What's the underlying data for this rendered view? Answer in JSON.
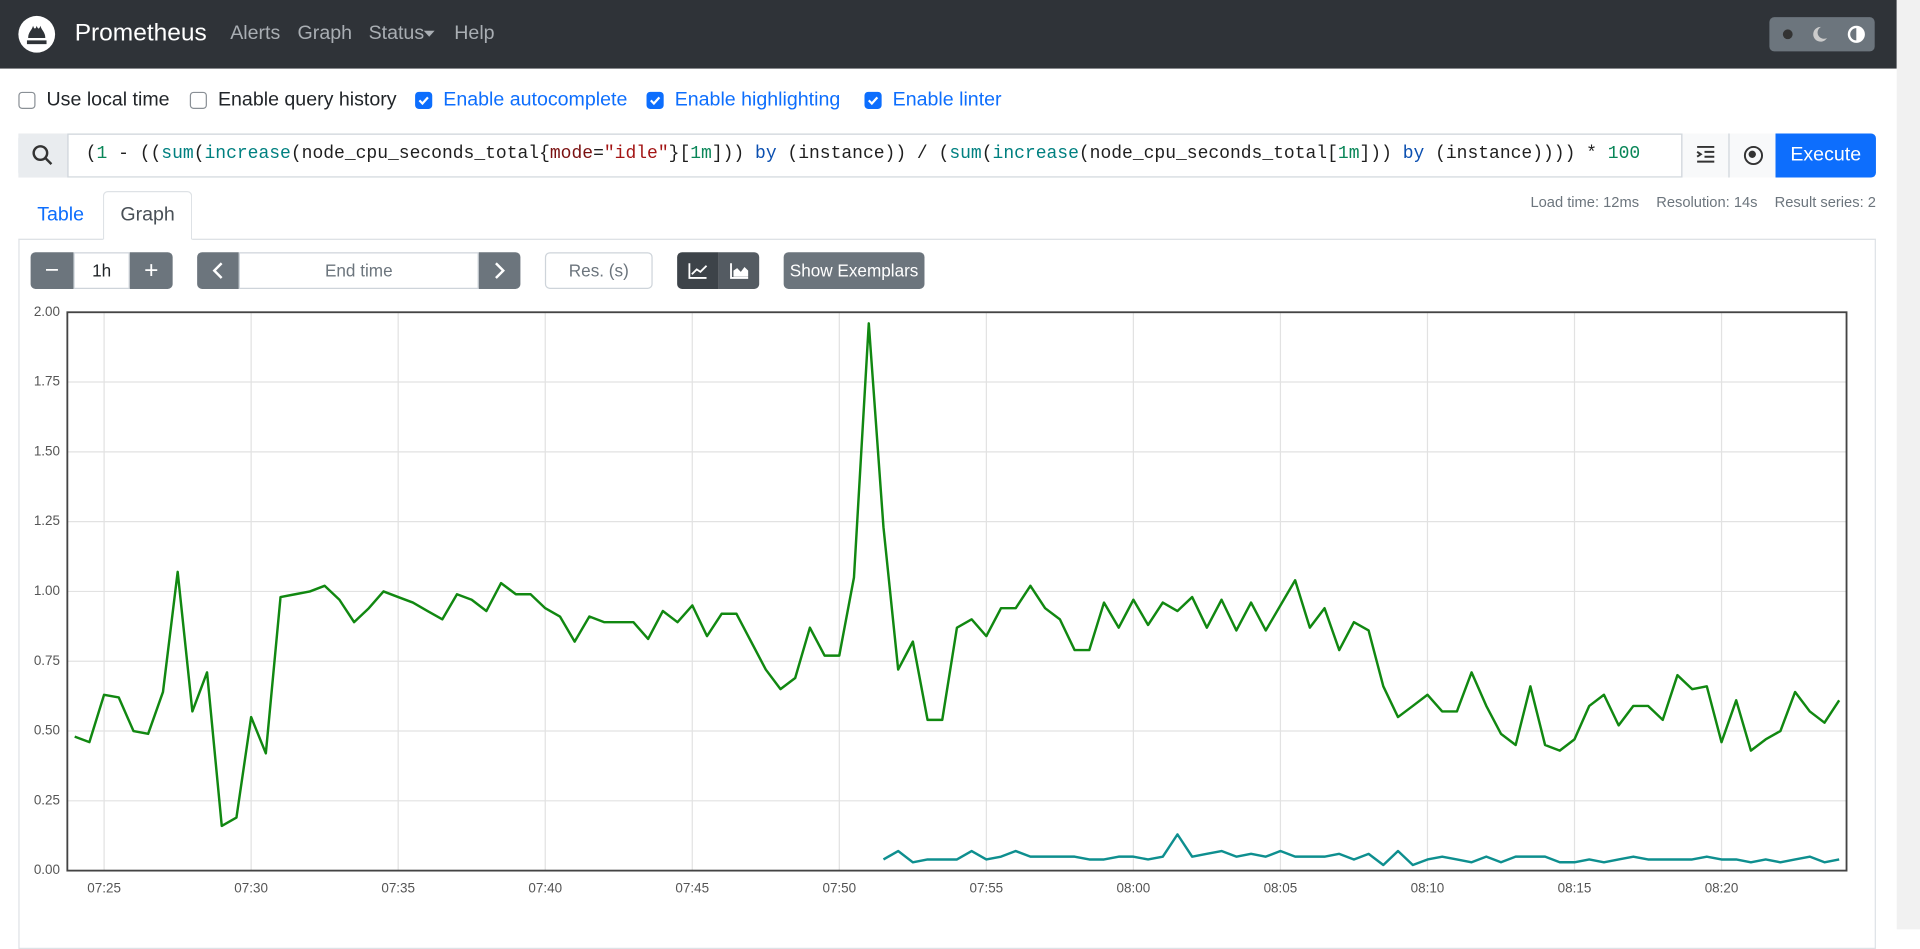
{
  "navbar": {
    "brand": "Prometheus",
    "links": [
      "Alerts",
      "Graph",
      "Status",
      "Help"
    ]
  },
  "options": [
    "Use local time",
    "Enable query history",
    "Enable autocomplete",
    "Enable highlighting",
    "Enable linter"
  ],
  "options_checked": [
    false,
    false,
    true,
    true,
    true
  ],
  "query": {
    "expression": "(1 - ((sum(increase(node_cpu_seconds_total{mode=\"idle\"}[1m])) by (instance)) / (sum(increase(node_cpu_seconds_total[1m])) by (instance)))) * 100",
    "execute": "Execute"
  },
  "stats": [
    "Load time: 12ms",
    "Resolution: 14s",
    "Result series: 2"
  ],
  "tabs": [
    "Table",
    "Graph"
  ],
  "active_tab": 1,
  "controls": {
    "range": "1h",
    "end_time": "End time",
    "resolution": "Res. (s)",
    "exemplars": "Show Exemplars"
  },
  "chart_data": {
    "type": "line",
    "x": [
      "07:24:00",
      "07:24:30",
      "07:25:00",
      "07:25:30",
      "07:26:00",
      "07:26:30",
      "07:27:00",
      "07:27:30",
      "07:28:00",
      "07:28:30",
      "07:29:00",
      "07:29:30",
      "07:30:00",
      "07:30:30",
      "07:31:00",
      "07:31:30",
      "07:32:00",
      "07:32:30",
      "07:33:00",
      "07:33:30",
      "07:34:00",
      "07:34:30",
      "07:35:00",
      "07:35:30",
      "07:36:00",
      "07:36:30",
      "07:37:00",
      "07:37:30",
      "07:38:00",
      "07:38:30",
      "07:39:00",
      "07:39:30",
      "07:40:00",
      "07:40:30",
      "07:41:00",
      "07:41:30",
      "07:42:00",
      "07:42:30",
      "07:43:00",
      "07:43:30",
      "07:44:00",
      "07:44:30",
      "07:45:00",
      "07:45:30",
      "07:46:00",
      "07:46:30",
      "07:47:00",
      "07:47:30",
      "07:48:00",
      "07:48:30",
      "07:49:00",
      "07:49:30",
      "07:50:00",
      "07:50:30",
      "07:51:00",
      "07:51:30",
      "07:52:00",
      "07:52:30",
      "07:53:00",
      "07:53:30",
      "07:54:00",
      "07:54:30",
      "07:55:00",
      "07:55:30",
      "07:56:00",
      "07:56:30",
      "07:57:00",
      "07:57:30",
      "07:58:00",
      "07:58:30",
      "07:59:00",
      "07:59:30",
      "08:00:00",
      "08:00:30",
      "08:01:00",
      "08:01:30",
      "08:02:00",
      "08:02:30",
      "08:03:00",
      "08:03:30",
      "08:04:00",
      "08:04:30",
      "08:05:00",
      "08:05:30",
      "08:06:00",
      "08:06:30",
      "08:07:00",
      "08:07:30",
      "08:08:00",
      "08:08:30",
      "08:09:00",
      "08:09:30",
      "08:10:00",
      "08:10:30",
      "08:11:00",
      "08:11:30",
      "08:12:00",
      "08:12:30",
      "08:13:00",
      "08:13:30",
      "08:14:00",
      "08:14:30",
      "08:15:00",
      "08:15:30",
      "08:16:00",
      "08:16:30",
      "08:17:00",
      "08:17:30",
      "08:18:00",
      "08:18:30",
      "08:19:00",
      "08:19:30",
      "08:20:00",
      "08:20:30",
      "08:21:00",
      "08:21:30",
      "08:22:00",
      "08:22:30",
      "08:23:00",
      "08:23:30",
      "08:24:00"
    ],
    "series": [
      {
        "color": "#118811",
        "values": [
          0.48,
          0.46,
          0.63,
          0.62,
          0.5,
          0.49,
          0.64,
          1.07,
          0.57,
          0.71,
          0.16,
          0.19,
          0.55,
          0.42,
          0.98,
          0.99,
          1.0,
          1.02,
          0.97,
          0.89,
          0.94,
          1.0,
          0.98,
          0.96,
          0.93,
          0.9,
          0.99,
          0.97,
          0.93,
          1.03,
          0.99,
          0.99,
          0.94,
          0.91,
          0.82,
          0.91,
          0.89,
          0.89,
          0.89,
          0.83,
          0.93,
          0.89,
          0.95,
          0.84,
          0.92,
          0.92,
          0.82,
          0.72,
          0.65,
          0.69,
          0.87,
          0.77,
          0.77,
          1.05,
          1.96,
          1.23,
          0.72,
          0.82,
          0.54,
          0.54,
          0.87,
          0.9,
          0.84,
          0.94,
          0.94,
          1.02,
          0.94,
          0.9,
          0.79,
          0.79,
          0.96,
          0.87,
          0.97,
          0.88,
          0.96,
          0.93,
          0.98,
          0.87,
          0.97,
          0.86,
          0.96,
          0.86,
          0.95,
          1.04,
          0.87,
          0.94,
          0.79,
          0.89,
          0.86,
          0.66,
          0.55,
          0.59,
          0.63,
          0.57,
          0.57,
          0.71,
          0.59,
          0.49,
          0.45,
          0.66,
          0.45,
          0.43,
          0.47,
          0.59,
          0.63,
          0.52,
          0.59,
          0.59,
          0.54,
          0.7,
          0.65,
          0.66,
          0.46,
          0.61,
          0.43,
          0.47,
          0.5,
          0.64,
          0.57,
          0.53,
          0.61
        ]
      },
      {
        "color": "#0e8f8f",
        "values": [
          null,
          null,
          null,
          null,
          null,
          null,
          null,
          null,
          null,
          null,
          null,
          null,
          null,
          null,
          null,
          null,
          null,
          null,
          null,
          null,
          null,
          null,
          null,
          null,
          null,
          null,
          null,
          null,
          null,
          null,
          null,
          null,
          null,
          null,
          null,
          null,
          null,
          null,
          null,
          null,
          null,
          null,
          null,
          null,
          null,
          null,
          null,
          null,
          null,
          null,
          null,
          null,
          null,
          null,
          null,
          0.04,
          0.07,
          0.03,
          0.04,
          0.04,
          0.04,
          0.07,
          0.04,
          0.05,
          0.07,
          0.05,
          0.05,
          0.05,
          0.05,
          0.04,
          0.04,
          0.05,
          0.05,
          0.04,
          0.05,
          0.13,
          0.05,
          0.06,
          0.07,
          0.05,
          0.06,
          0.05,
          0.07,
          0.05,
          0.05,
          0.05,
          0.06,
          0.04,
          0.06,
          0.02,
          0.07,
          0.02,
          0.04,
          0.05,
          0.04,
          0.03,
          0.05,
          0.03,
          0.05,
          0.05,
          0.05,
          0.03,
          0.03,
          0.04,
          0.03,
          0.04,
          0.05,
          0.04,
          0.04,
          0.04,
          0.04,
          0.05,
          0.04,
          0.04,
          0.03,
          0.04,
          0.03,
          0.04,
          0.05,
          0.03,
          0.04
        ]
      }
    ],
    "xlim": [
      "07:23:45",
      "08:24:15"
    ],
    "xticks": [
      "07:25",
      "07:30",
      "07:35",
      "07:40",
      "07:45",
      "07:50",
      "07:55",
      "08:00",
      "08:05",
      "08:10",
      "08:15",
      "08:20"
    ],
    "ylim": [
      0,
      2
    ],
    "yticks": [
      {
        "value": 0,
        "label": "0.00"
      },
      {
        "value": 0.25,
        "label": "0.25"
      },
      {
        "value": 0.5,
        "label": "0.50"
      },
      {
        "value": 0.75,
        "label": "0.75"
      },
      {
        "value": 1,
        "label": "1.00"
      },
      {
        "value": 1.25,
        "label": "1.25"
      },
      {
        "value": 1.5,
        "label": "1.50"
      },
      {
        "value": 1.75,
        "label": "1.75"
      },
      {
        "value": 2,
        "label": "2.00"
      }
    ],
    "grid": true
  }
}
